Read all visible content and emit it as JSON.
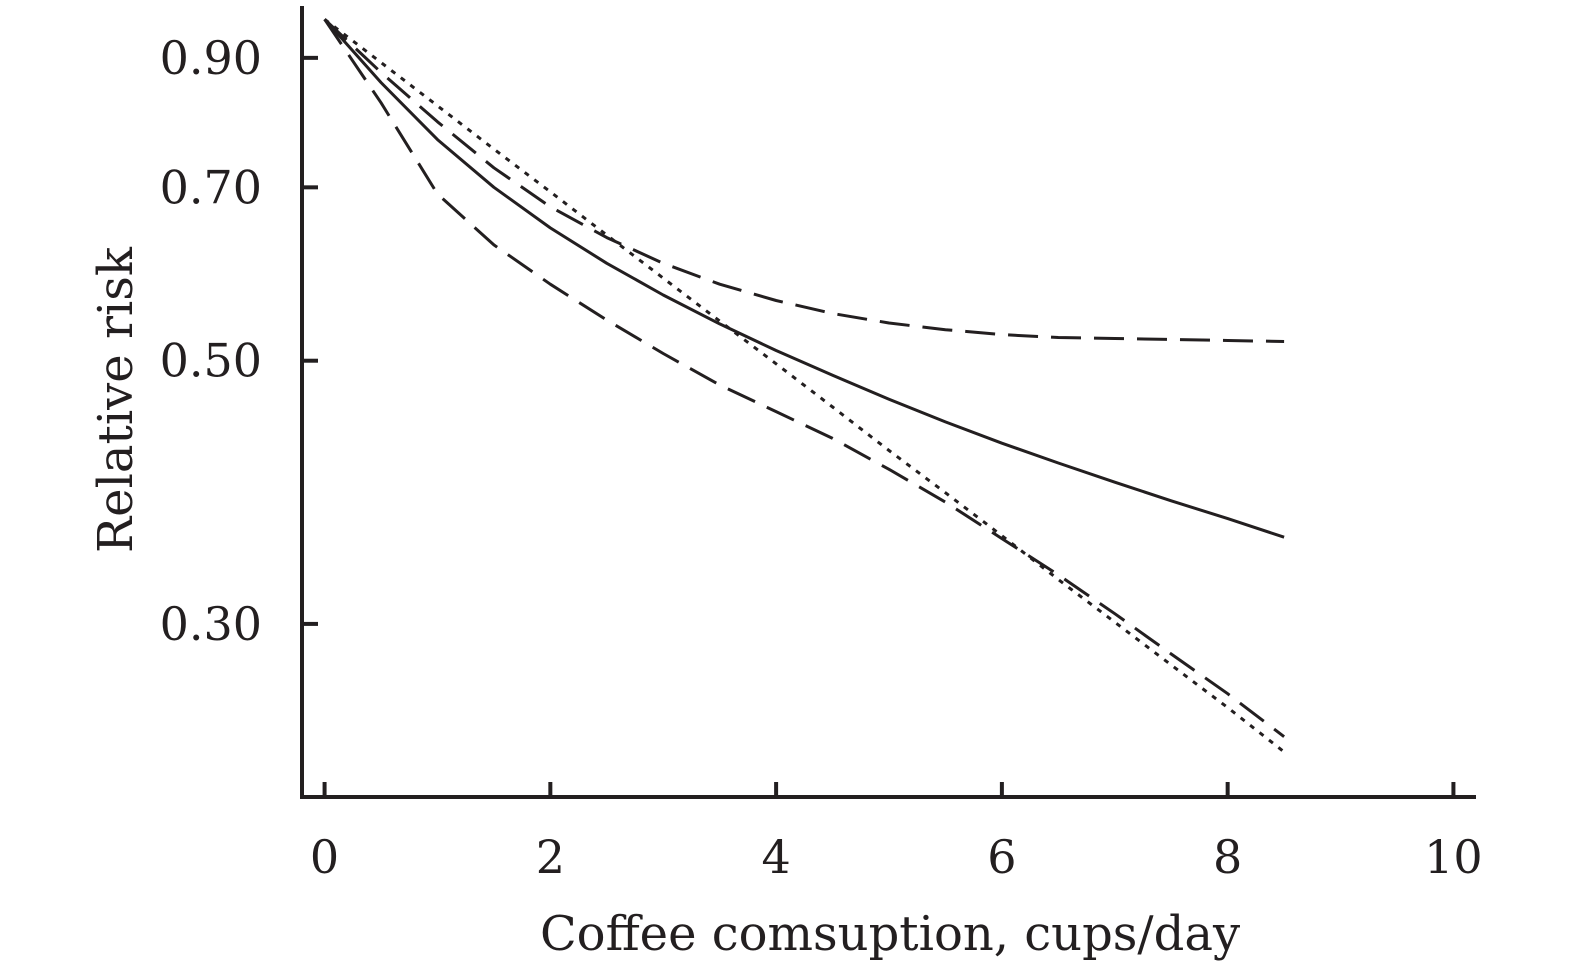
{
  "chart_data": {
    "type": "line",
    "title": "",
    "xlabel": "Coffee comsuption, cups/day",
    "ylabel": "Relative risk",
    "xlim": [
      -0.2,
      10.2
    ],
    "ylim": [
      0.2144,
      0.9953
    ],
    "y_scale": "log",
    "x_ticks": [
      0,
      2,
      4,
      6,
      8,
      10
    ],
    "x_tick_labels": [
      "0",
      "2",
      "4",
      "6",
      "8",
      "10"
    ],
    "y_ticks": [
      0.3,
      0.5,
      0.7,
      0.9
    ],
    "y_tick_labels": [
      "0.30",
      "0.50",
      "0.70",
      "0.90"
    ],
    "grid": false,
    "legend": "none",
    "series": [
      {
        "style": "solid",
        "x": [
          0,
          0.5,
          1,
          1.5,
          2,
          2.5,
          3,
          3.5,
          4,
          4.5,
          5,
          5.5,
          6,
          6.5,
          7,
          7.5,
          8,
          8.5
        ],
        "y": [
          0.97,
          0.858,
          0.768,
          0.7,
          0.647,
          0.604,
          0.568,
          0.537,
          0.51,
          0.486,
          0.464,
          0.444,
          0.426,
          0.41,
          0.395,
          0.381,
          0.368,
          0.355
        ]
      },
      {
        "style": "long-dash",
        "x": [
          0,
          0.5,
          1,
          1.5,
          2,
          2.5,
          3,
          3.5,
          4,
          4.5,
          5,
          5.5,
          6,
          6.5,
          7,
          7.5,
          8,
          8.5
        ],
        "y": [
          0.97,
          0.825,
          0.691,
          0.626,
          0.58,
          0.541,
          0.507,
          0.477,
          0.453,
          0.43,
          0.405,
          0.38,
          0.354,
          0.33,
          0.306,
          0.283,
          0.262,
          0.241
        ]
      },
      {
        "style": "dash",
        "x": [
          0,
          0.5,
          1,
          1.5,
          2,
          2.5,
          3,
          3.5,
          4,
          4.5,
          5,
          5.5,
          6,
          6.5,
          7,
          7.5,
          8,
          8.5
        ],
        "y": [
          0.97,
          0.875,
          0.795,
          0.727,
          0.674,
          0.635,
          0.604,
          0.58,
          0.562,
          0.548,
          0.538,
          0.531,
          0.526,
          0.523,
          0.522,
          0.521,
          0.52,
          0.519
        ]
      },
      {
        "style": "dotted",
        "x": [
          0,
          0.5,
          1,
          1.5,
          2,
          2.5,
          3,
          3.5,
          4,
          4.5,
          5,
          5.5,
          6,
          6.5,
          7,
          7.5,
          8,
          8.5
        ],
        "y": [
          0.97,
          0.892,
          0.82,
          0.754,
          0.694,
          0.638,
          0.587,
          0.54,
          0.497,
          0.457,
          0.42,
          0.387,
          0.356,
          0.327,
          0.301,
          0.277,
          0.255,
          0.234
        ]
      }
    ]
  }
}
